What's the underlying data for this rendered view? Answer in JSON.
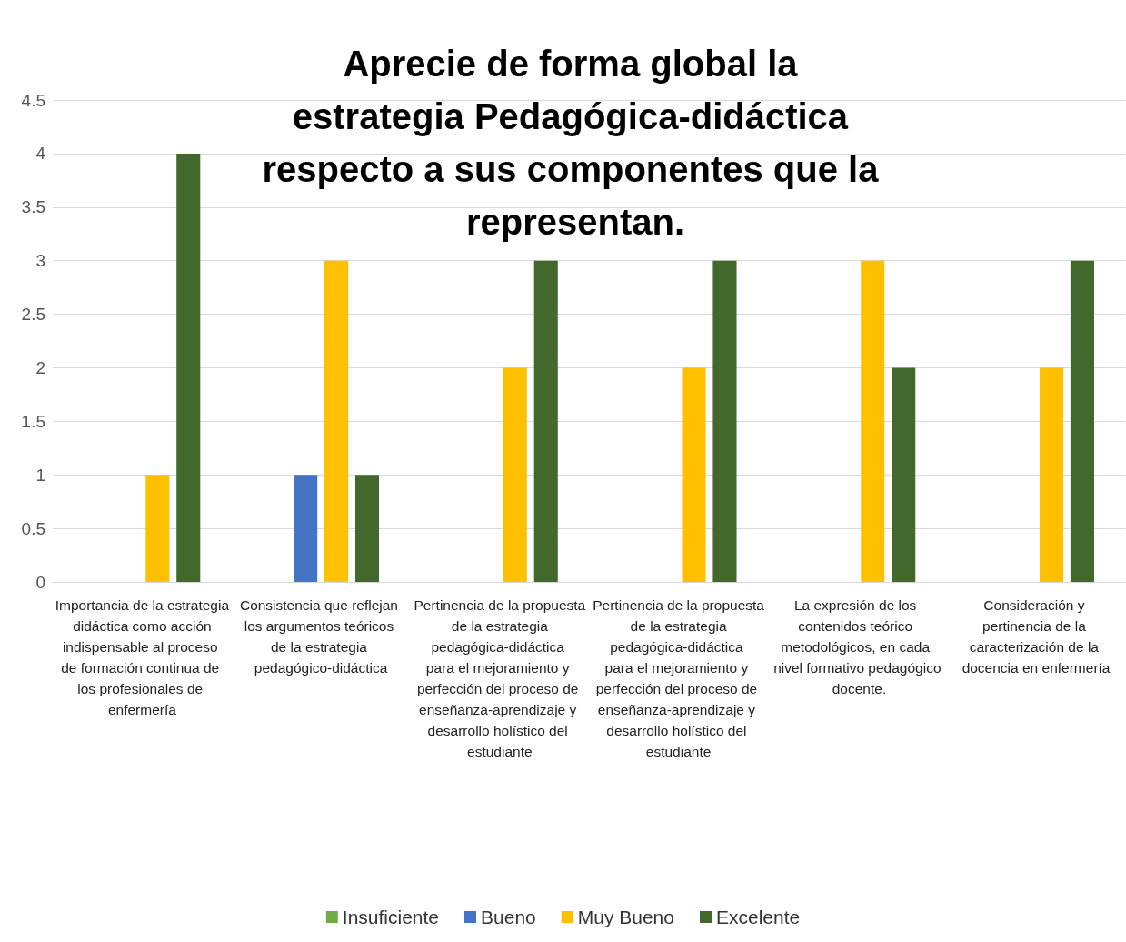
{
  "chart_data": {
    "type": "bar",
    "title": "Aprecie de forma global la estrategia Pedagógica-didáctica respecto a sus componentes que la representan.",
    "categories": [
      "Importancia de la estrategia didáctica como acción indispensable al proceso de formación continua de los profesionales de enfermería",
      "Consistencia que reflejan los argumentos teóricos de la estrategia pedagógico-didáctica",
      "Pertinencia de la propuesta de la estrategia pedagógica-didáctica para el mejoramiento y perfección del proceso de enseñanza-aprendizaje y desarrollo holístico del estudiante",
      "Pertinencia de la propuesta de la estrategia pedagógica-didáctica para el mejoramiento y perfección del proceso de enseñanza-aprendizaje y desarrollo holístico del estudiante",
      "La expresión de los contenidos teórico metodológicos, en cada nivel formativo pedagógico docente.",
      "Consideración y pertinencia de la caracterización de la docencia en enfermería"
    ],
    "series": [
      {
        "name": "Insuficiente",
        "color": "#70ad47",
        "values": [
          0,
          0,
          0,
          0,
          0,
          0
        ]
      },
      {
        "name": "Bueno",
        "color": "#4472c4",
        "values": [
          0,
          1,
          0,
          0,
          0,
          0
        ]
      },
      {
        "name": "Muy Bueno",
        "color": "#ffc000",
        "values": [
          1,
          3,
          2,
          2,
          3,
          2
        ]
      },
      {
        "name": "Excelente",
        "color": "#43682b",
        "values": [
          4,
          1,
          3,
          3,
          2,
          3
        ]
      }
    ],
    "ylim": [
      0,
      4.5
    ],
    "yticks": [
      0,
      0.5,
      1,
      1.5,
      2,
      2.5,
      3,
      3.5,
      4,
      4.5
    ],
    "grid": "y",
    "legend": "bottom"
  }
}
